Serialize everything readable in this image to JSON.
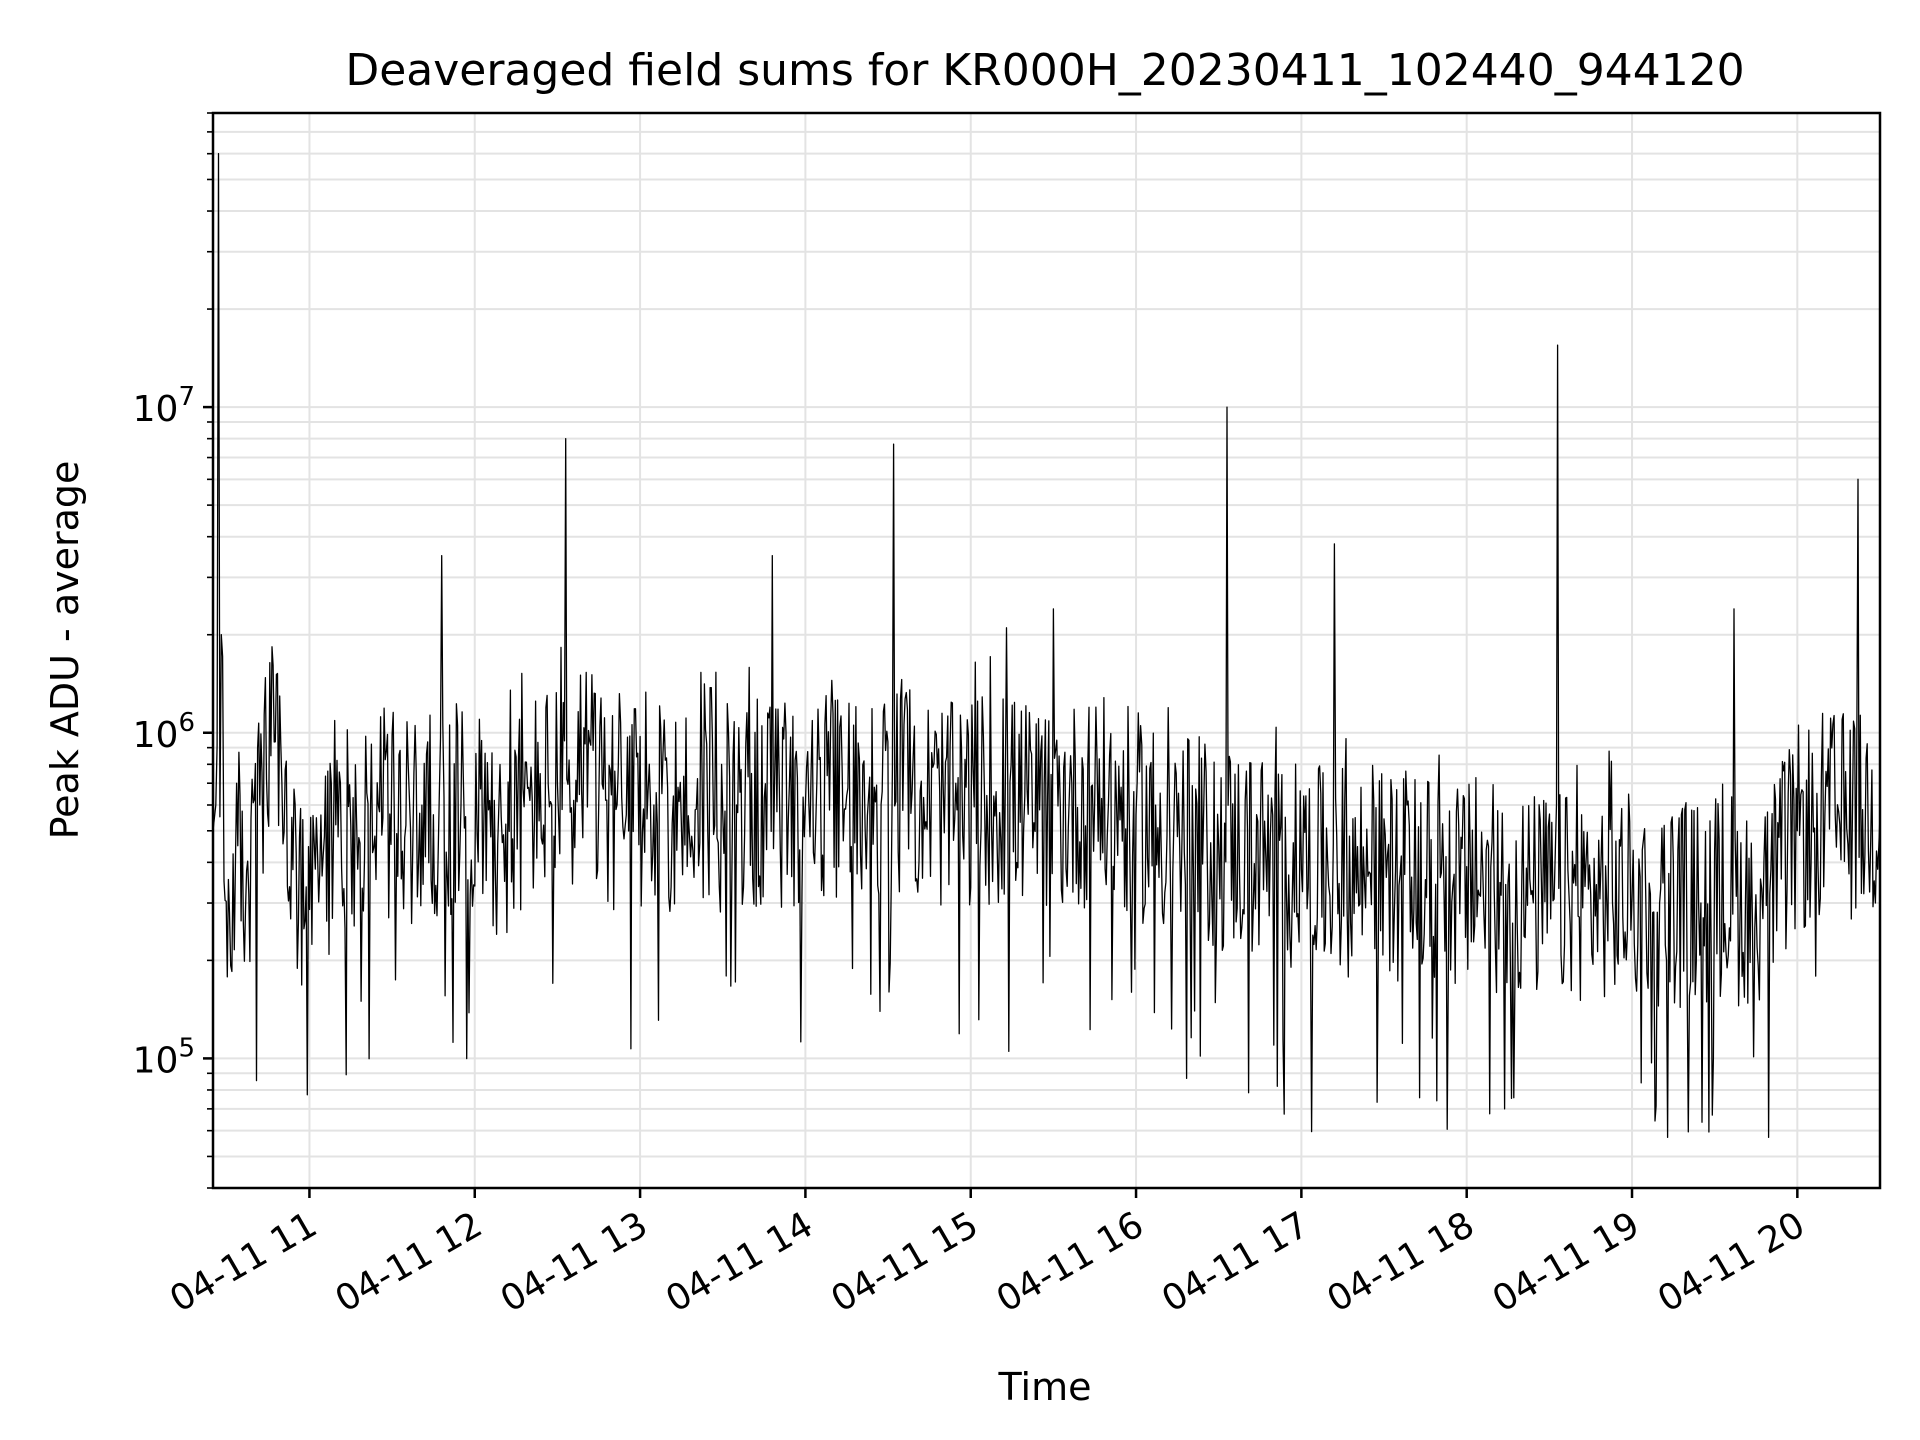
{
  "chart_data": {
    "type": "line",
    "title": "Deaveraged field sums for KR000H_20230411_102440_944120",
    "xlabel": "Time",
    "ylabel": "Peak ADU - average",
    "yscale": "log",
    "xlim": [
      "2023-04-11T10:25:00",
      "2023-04-11T20:30:00"
    ],
    "ylim": [
      40000,
      80000000
    ],
    "grid": true,
    "legend": "none",
    "line_color": "#000000",
    "x_ticks": [
      {
        "value": "2023-04-11T11:00:00",
        "label": "04-11 11"
      },
      {
        "value": "2023-04-11T12:00:00",
        "label": "04-11 12"
      },
      {
        "value": "2023-04-11T13:00:00",
        "label": "04-11 13"
      },
      {
        "value": "2023-04-11T14:00:00",
        "label": "04-11 14"
      },
      {
        "value": "2023-04-11T15:00:00",
        "label": "04-11 15"
      },
      {
        "value": "2023-04-11T16:00:00",
        "label": "04-11 16"
      },
      {
        "value": "2023-04-11T17:00:00",
        "label": "04-11 17"
      },
      {
        "value": "2023-04-11T18:00:00",
        "label": "04-11 18"
      },
      {
        "value": "2023-04-11T19:00:00",
        "label": "04-11 19"
      },
      {
        "value": "2023-04-11T20:00:00",
        "label": "04-11 20"
      }
    ],
    "y_ticks": [
      {
        "value": 100000,
        "base": "10",
        "exp": "5"
      },
      {
        "value": 1000000,
        "base": "10",
        "exp": "6"
      },
      {
        "value": 10000000,
        "base": "10",
        "exp": "7"
      }
    ],
    "x": [
      "2023-04-11T10:25:00",
      "2023-04-11T10:26:00",
      "2023-04-11T10:27:00",
      "2023-04-11T10:28:00",
      "2023-04-11T10:29:00",
      "2023-04-11T10:31:00",
      "2023-04-11T10:34:00",
      "2023-04-11T10:38:00",
      "2023-04-11T10:42:00",
      "2023-04-11T10:46:00",
      "2023-04-11T10:50:00",
      "2023-04-11T10:54:00",
      "2023-04-11T10:58:00",
      "2023-04-11T11:05:00",
      "2023-04-11T11:15:00",
      "2023-04-11T11:25:00",
      "2023-04-11T11:35:00",
      "2023-04-11T11:45:00",
      "2023-04-11T11:48:00",
      "2023-04-11T11:55:00",
      "2023-04-11T12:05:00",
      "2023-04-11T12:10:00",
      "2023-04-11T12:20:00",
      "2023-04-11T12:30:00",
      "2023-04-11T12:33:00",
      "2023-04-11T12:45:00",
      "2023-04-11T12:55:00",
      "2023-04-11T13:05:00",
      "2023-04-11T13:20:00",
      "2023-04-11T13:35:00",
      "2023-04-11T13:48:00",
      "2023-04-11T14:00:00",
      "2023-04-11T14:15:00",
      "2023-04-11T14:25:00",
      "2023-04-11T14:32:00",
      "2023-04-11T14:45:00",
      "2023-04-11T14:55:00",
      "2023-04-11T15:05:00",
      "2023-04-11T15:13:00",
      "2023-04-11T15:25:00",
      "2023-04-11T15:30:00",
      "2023-04-11T15:45:00",
      "2023-04-11T16:00:00",
      "2023-04-11T16:15:00",
      "2023-04-11T16:30:00",
      "2023-04-11T16:33:00",
      "2023-04-11T16:45:00",
      "2023-04-11T17:00:00",
      "2023-04-11T17:12:00",
      "2023-04-11T17:25:00",
      "2023-04-11T17:40:00",
      "2023-04-11T17:55:00",
      "2023-04-11T18:10:00",
      "2023-04-11T18:25:00",
      "2023-04-11T18:33:00",
      "2023-04-11T18:45:00",
      "2023-04-11T19:00:00",
      "2023-04-11T19:10:00",
      "2023-04-11T19:25:00",
      "2023-04-11T19:37:00",
      "2023-04-11T19:50:00",
      "2023-04-11T20:00:00",
      "2023-04-11T20:10:00",
      "2023-04-11T20:20:00",
      "2023-04-11T20:22:00",
      "2023-04-11T20:30:00"
    ],
    "y": [
      500000,
      600000,
      60000000,
      2000000,
      350000,
      280000,
      450000,
      320000,
      600000,
      850000,
      700000,
      380000,
      250000,
      420000,
      520000,
      600000,
      520000,
      560000,
      3500000,
      600000,
      580000,
      460000,
      620000,
      700000,
      8000000,
      620000,
      560000,
      600000,
      580000,
      600000,
      3500000,
      600000,
      640000,
      680000,
      7700000,
      620000,
      580000,
      640000,
      2100000,
      580000,
      2400000,
      620000,
      560000,
      480000,
      450000,
      10000000,
      420000,
      380000,
      3800000,
      370000,
      360000,
      340000,
      330000,
      310000,
      15500000,
      320000,
      310000,
      300000,
      300000,
      2400000,
      320000,
      500000,
      560000,
      550000,
      6000000,
      560000
    ],
    "noise_band": {
      "low_factor": 0.45,
      "high_factor": 2.0
    }
  }
}
